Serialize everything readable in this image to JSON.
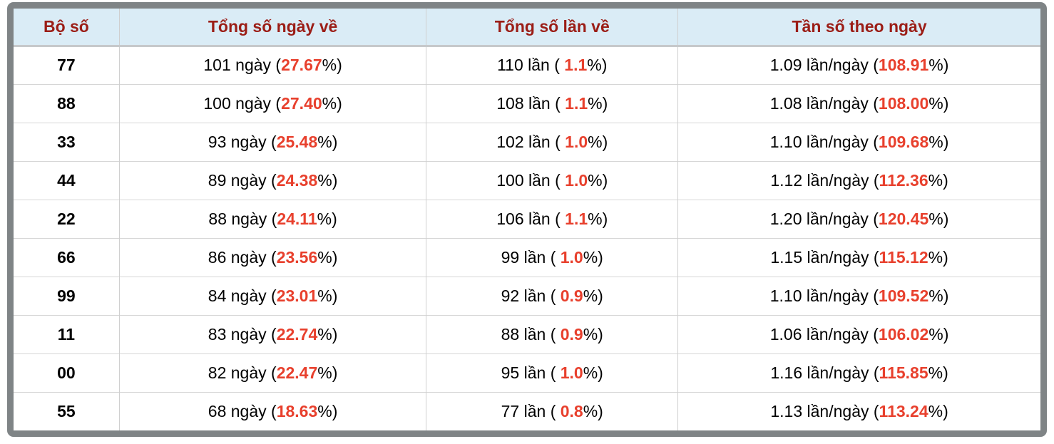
{
  "colors": {
    "frame": "#7f8486",
    "header_bg": "#daecf6",
    "header_text": "#9b1d16",
    "cell_border": "#cfcfcf",
    "header_border": "#c6c9cb",
    "row_border": "#d6d6d6",
    "accent_red": "#e8402d",
    "text": "#000000",
    "page_bg": "#ffffff"
  },
  "table": {
    "headers": [
      "Bộ số",
      "Tổng số ngày về",
      "Tổng số lần về",
      "Tần số theo ngày"
    ],
    "units": {
      "days": "ngày",
      "times": "lần",
      "freq": "lần/ngày"
    },
    "rows": [
      {
        "pair": "77",
        "days": "101",
        "days_pct": "27.67",
        "times": "110",
        "times_pct": "1.1",
        "freq": "1.09",
        "freq_pct": "108.91"
      },
      {
        "pair": "88",
        "days": "100",
        "days_pct": "27.40",
        "times": "108",
        "times_pct": "1.1",
        "freq": "1.08",
        "freq_pct": "108.00"
      },
      {
        "pair": "33",
        "days": "93",
        "days_pct": "25.48",
        "times": "102",
        "times_pct": "1.0",
        "freq": "1.10",
        "freq_pct": "109.68"
      },
      {
        "pair": "44",
        "days": "89",
        "days_pct": "24.38",
        "times": "100",
        "times_pct": "1.0",
        "freq": "1.12",
        "freq_pct": "112.36"
      },
      {
        "pair": "22",
        "days": "88",
        "days_pct": "24.11",
        "times": "106",
        "times_pct": "1.1",
        "freq": "1.20",
        "freq_pct": "120.45"
      },
      {
        "pair": "66",
        "days": "86",
        "days_pct": "23.56",
        "times": "99",
        "times_pct": "1.0",
        "freq": "1.15",
        "freq_pct": "115.12"
      },
      {
        "pair": "99",
        "days": "84",
        "days_pct": "23.01",
        "times": "92",
        "times_pct": "0.9",
        "freq": "1.10",
        "freq_pct": "109.52"
      },
      {
        "pair": "11",
        "days": "83",
        "days_pct": "22.74",
        "times": "88",
        "times_pct": "0.9",
        "freq": "1.06",
        "freq_pct": "106.02"
      },
      {
        "pair": "00",
        "days": "82",
        "days_pct": "22.47",
        "times": "95",
        "times_pct": "1.0",
        "freq": "1.16",
        "freq_pct": "115.85"
      },
      {
        "pair": "55",
        "days": "68",
        "days_pct": "18.63",
        "times": "77",
        "times_pct": "0.8",
        "freq": "1.13",
        "freq_pct": "113.24"
      }
    ]
  }
}
